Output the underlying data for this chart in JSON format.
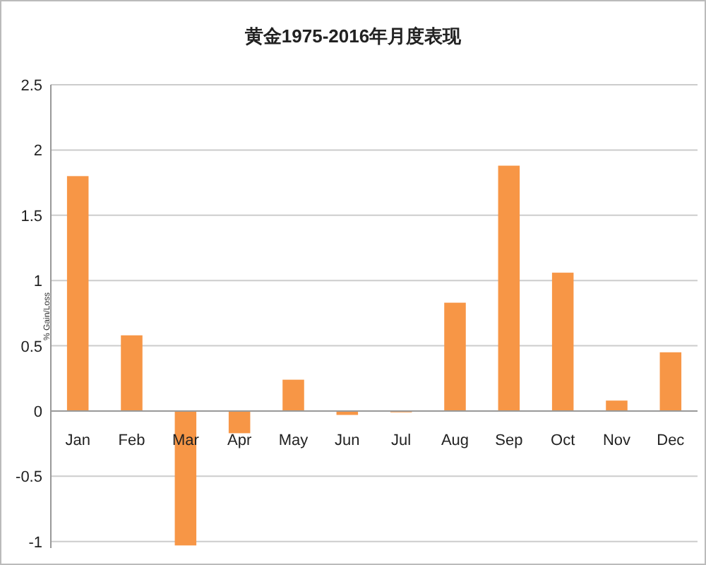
{
  "chart_data": {
    "type": "bar",
    "title": "黄金1975-2016年月度表现",
    "ylabel": "% Gain/Loss",
    "categories": [
      "Jan",
      "Feb",
      "Mar",
      "Apr",
      "May",
      "Jun",
      "Jul",
      "Aug",
      "Sep",
      "Oct",
      "Nov",
      "Dec"
    ],
    "values": [
      1.8,
      0.58,
      -1.03,
      -0.17,
      0.24,
      -0.03,
      -0.01,
      0.83,
      1.88,
      1.06,
      0.08,
      0.45
    ],
    "color": "#f79646",
    "ylim": [
      -1.05,
      2.5
    ],
    "yticks": [
      -1,
      -0.5,
      0,
      0.5,
      1,
      1.5,
      2,
      2.5
    ],
    "grid": "y"
  }
}
